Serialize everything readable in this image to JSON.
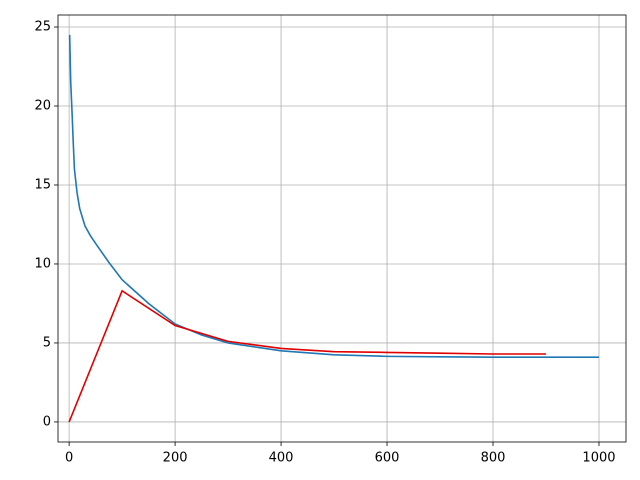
{
  "chart_data": {
    "type": "line",
    "xlim": [
      -21,
      1051
    ],
    "ylim": [
      -1.27,
      25.76
    ],
    "xticks": [
      0,
      200,
      400,
      600,
      800,
      1000
    ],
    "yticks": [
      0,
      5,
      10,
      15,
      20,
      25
    ],
    "grid": true,
    "series": [
      {
        "color": "#1f77b4",
        "x": [
          1,
          3,
          5,
          8,
          10,
          15,
          20,
          30,
          40,
          50,
          75,
          100,
          150,
          200,
          250,
          300,
          400,
          500,
          600,
          700,
          800,
          900,
          1000
        ],
        "values": [
          24.5,
          21.5,
          20,
          17.5,
          16,
          14.5,
          13.5,
          12.4,
          11.8,
          11.3,
          10.1,
          9,
          7.5,
          6.2,
          5.5,
          5.0,
          4.5,
          4.25,
          4.15,
          4.12,
          4.1,
          4.1,
          4.1
        ]
      },
      {
        "color": "#e00000",
        "x": [
          0,
          100,
          200,
          300,
          400,
          500,
          600,
          700,
          800,
          900
        ],
        "values": [
          0,
          8.3,
          6.1,
          5.1,
          4.65,
          4.45,
          4.4,
          4.35,
          4.3,
          4.3
        ]
      }
    ]
  }
}
